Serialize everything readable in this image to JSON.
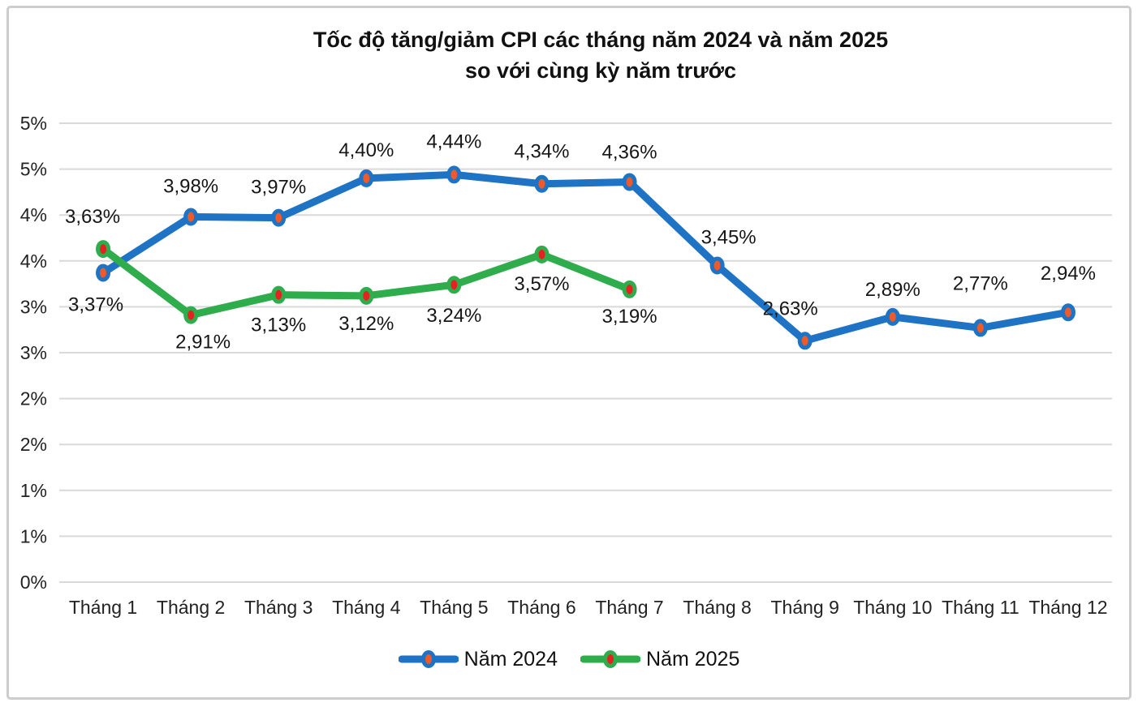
{
  "title": {
    "line1": "Tốc độ tăng/giảm CPI các tháng năm 2024 và năm 2025",
    "line2": "so với cùng kỳ năm trước"
  },
  "colors": {
    "background": "#ffffff",
    "gridline": "#d9d9d9",
    "frame_border": "#cdcdcd",
    "axis_text": "#222222",
    "label_text": "#161616",
    "series_2024_line": "#1e73c4",
    "series_2024_marker": "#ef5b28",
    "series_2025_line": "#2fac4b",
    "series_2025_marker": "#e42320"
  },
  "chart_data": {
    "type": "line",
    "title": "Tốc độ tăng/giảm CPI các tháng năm 2024 và năm 2025 so với cùng kỳ năm trước",
    "categories": [
      "Tháng 1",
      "Tháng 2",
      "Tháng 3",
      "Tháng 4",
      "Tháng 5",
      "Tháng 6",
      "Tháng 7",
      "Tháng 8",
      "Tháng 9",
      "Tháng 10",
      "Tháng 11",
      "Tháng 12"
    ],
    "y_axis": {
      "min": 0,
      "max": 5,
      "tick_step": 0.5,
      "tick_values": [
        0,
        0.5,
        1,
        1.5,
        2,
        2.5,
        3,
        3.5,
        4,
        4.5,
        5
      ],
      "tick_labels": [
        "0%",
        "1%",
        "1%",
        "2%",
        "2%",
        "3%",
        "3%",
        "4%",
        "4%",
        "5%",
        "5%"
      ],
      "grid": true
    },
    "legend_position": "bottom",
    "series": [
      {
        "name": "Năm 2024",
        "color": "#1e73c4",
        "marker_color": "#ef5b28",
        "values": [
          3.37,
          3.98,
          3.97,
          4.4,
          4.44,
          4.34,
          4.36,
          3.45,
          2.63,
          2.89,
          2.77,
          2.94
        ],
        "labels": [
          "3,37%",
          "3,98%",
          "3,97%",
          "4,40%",
          "4,44%",
          "4,34%",
          "4,36%",
          "3,45%",
          "2,63%",
          "2,89%",
          "2,77%",
          "2,94%"
        ],
        "label_dx": [
          -9,
          0,
          0,
          0,
          0,
          0,
          0,
          14,
          -18,
          0,
          0,
          0
        ],
        "label_dy": [
          47,
          -30,
          -30,
          -27,
          -33,
          -32,
          -29,
          -27,
          -32,
          -26,
          -47,
          -40
        ]
      },
      {
        "name": "Năm 2025",
        "color": "#2fac4b",
        "marker_color": "#e42320",
        "values": [
          3.63,
          2.91,
          3.13,
          3.12,
          3.24,
          3.57,
          3.19
        ],
        "labels": [
          "3,63%",
          "2,91%",
          "3,13%",
          "3,12%",
          "3,24%",
          "3,57%",
          "3,19%"
        ],
        "label_dx": [
          -13,
          15,
          0,
          0,
          0,
          0,
          0
        ],
        "label_dy": [
          -32,
          41,
          45,
          42,
          46,
          44,
          41
        ]
      }
    ]
  }
}
